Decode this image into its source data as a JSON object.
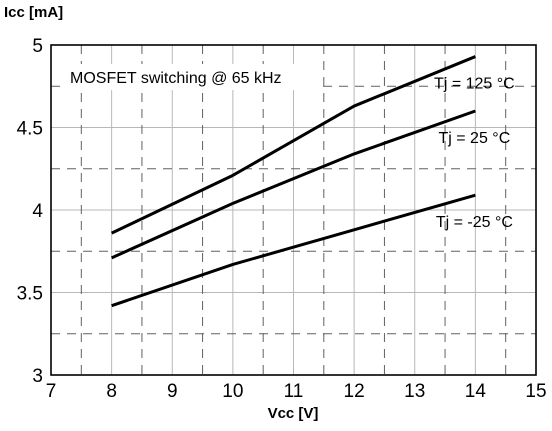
{
  "chart_data": {
    "type": "line",
    "title": "",
    "ylabel": "Icc [mA]",
    "xlabel": "Vcc [V]",
    "xlim": [
      7,
      15
    ],
    "ylim": [
      3,
      5
    ],
    "x_ticks": [
      "7",
      "8",
      "9",
      "10",
      "11",
      "12",
      "13",
      "14",
      "15"
    ],
    "y_ticks": [
      "3",
      "3.5",
      "4",
      "4.5",
      "5"
    ],
    "grid": true,
    "annotation": "MOSFET switching @ 65 kHz",
    "x": [
      8,
      10,
      12,
      14
    ],
    "series": [
      {
        "name": "Tj = 125 °C",
        "values": [
          3.86,
          4.21,
          4.63,
          4.93
        ]
      },
      {
        "name": "Tj = 25 °C",
        "values": [
          3.71,
          4.04,
          4.34,
          4.6
        ]
      },
      {
        "name": "Tj = -25 °C",
        "values": [
          3.42,
          3.67,
          3.88,
          4.09
        ]
      }
    ]
  }
}
